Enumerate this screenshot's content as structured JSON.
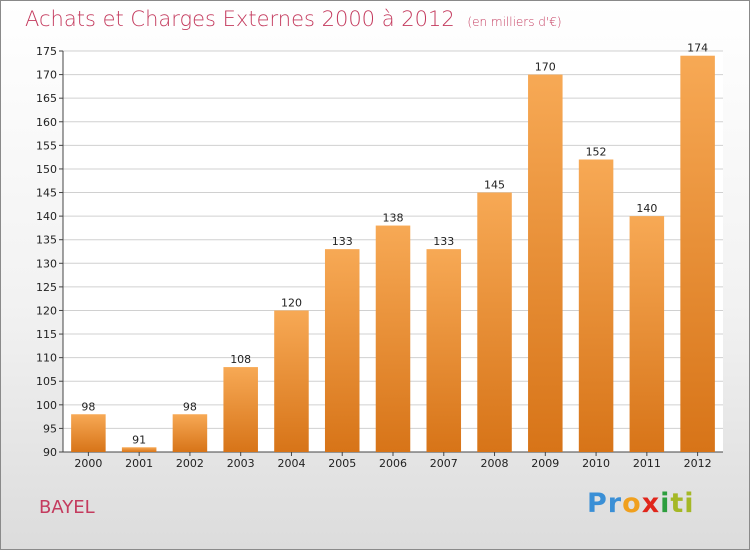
{
  "header": {
    "title": "Achats et Charges Externes 2000 à 2012",
    "unit": "(en milliers d'€)"
  },
  "footer": {
    "commune": "BAYEL",
    "logo_letters": [
      "P",
      "r",
      "o",
      "x",
      "i",
      "ti"
    ]
  },
  "colors": {
    "bar_light": "#f7a955",
    "bar_dark": "#d77418",
    "title": "#c43b5e",
    "grid": "#d0d0d0"
  },
  "chart_data": {
    "type": "bar",
    "title": "Achats et Charges Externes 2000 à 2012",
    "subtitle": "(en milliers d'€)",
    "categories": [
      "2000",
      "2001",
      "2002",
      "2003",
      "2004",
      "2005",
      "2006",
      "2007",
      "2008",
      "2009",
      "2010",
      "2011",
      "2012"
    ],
    "values": [
      98,
      91,
      98,
      108,
      120,
      133,
      138,
      133,
      145,
      170,
      152,
      140,
      174
    ],
    "ylim": [
      90,
      175
    ],
    "yticks": [
      90,
      95,
      100,
      105,
      110,
      115,
      120,
      125,
      130,
      135,
      140,
      145,
      150,
      155,
      160,
      165,
      170,
      175
    ],
    "grid": true,
    "data_labels": true,
    "xlabel": "",
    "ylabel": ""
  }
}
